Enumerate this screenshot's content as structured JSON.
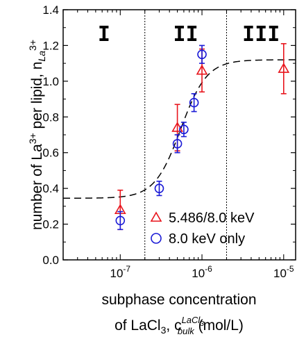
{
  "chart_data": {
    "type": "scatter",
    "x_scale": "log",
    "y_scale": "linear",
    "xlim": [
      2e-08,
      1.4e-05
    ],
    "ylim": [
      0.0,
      1.4
    ],
    "x_ticks": [
      {
        "value": 1e-07,
        "base": "10",
        "exp": "-7"
      },
      {
        "value": 1e-06,
        "base": "10",
        "exp": "-6"
      },
      {
        "value": 1e-05,
        "base": "10",
        "exp": "-5"
      }
    ],
    "y_ticks": [
      "0.0",
      "0.2",
      "0.4",
      "0.6",
      "0.8",
      "1.0",
      "1.2",
      "1.4"
    ],
    "ylabel": {
      "main": "number of La",
      "sup1": "3+",
      "rest": " per lipid, n",
      "sub": "La",
      "sub_sup": "3+"
    },
    "xlabel": {
      "line1": "subphase concentration",
      "line2_a": "of LaCl",
      "line2_sub": "3",
      "line2_b": ", c",
      "c_sup": "LaCl",
      "c_sup_sub": "3",
      "c_sub": "bulk",
      "line2_c": " (mol/L)"
    },
    "region_boundaries": [
      2e-07,
      2e-06
    ],
    "regions": [
      "I",
      "II",
      "III"
    ],
    "series": [
      {
        "name": "5.486/8.0 keV",
        "marker": "triangle",
        "color": "#e8141c",
        "points": [
          {
            "x": 1e-07,
            "y": 0.28,
            "err": 0.11
          },
          {
            "x": 5e-07,
            "y": 0.74,
            "err": 0.13
          },
          {
            "x": 1e-06,
            "y": 1.06,
            "err": 0.12
          },
          {
            "x": 1e-05,
            "y": 1.07,
            "err": 0.14
          }
        ]
      },
      {
        "name": "8.0 keV only",
        "marker": "circle",
        "color": "#1a1ad6",
        "points": [
          {
            "x": 1e-07,
            "y": 0.22,
            "err": 0.05
          },
          {
            "x": 3e-07,
            "y": 0.4,
            "err": 0.04
          },
          {
            "x": 5e-07,
            "y": 0.65,
            "err": 0.05
          },
          {
            "x": 6e-07,
            "y": 0.73,
            "err": 0.04
          },
          {
            "x": 8e-07,
            "y": 0.88,
            "err": 0.05
          },
          {
            "x": 1e-06,
            "y": 1.15,
            "err": 0.05
          }
        ]
      }
    ],
    "fit_curve": {
      "style": "dashed",
      "low": 0.345,
      "high": 1.12,
      "x0": 5.5e-07,
      "width": 0.16
    },
    "legend": {
      "position": "bottom-right"
    }
  }
}
